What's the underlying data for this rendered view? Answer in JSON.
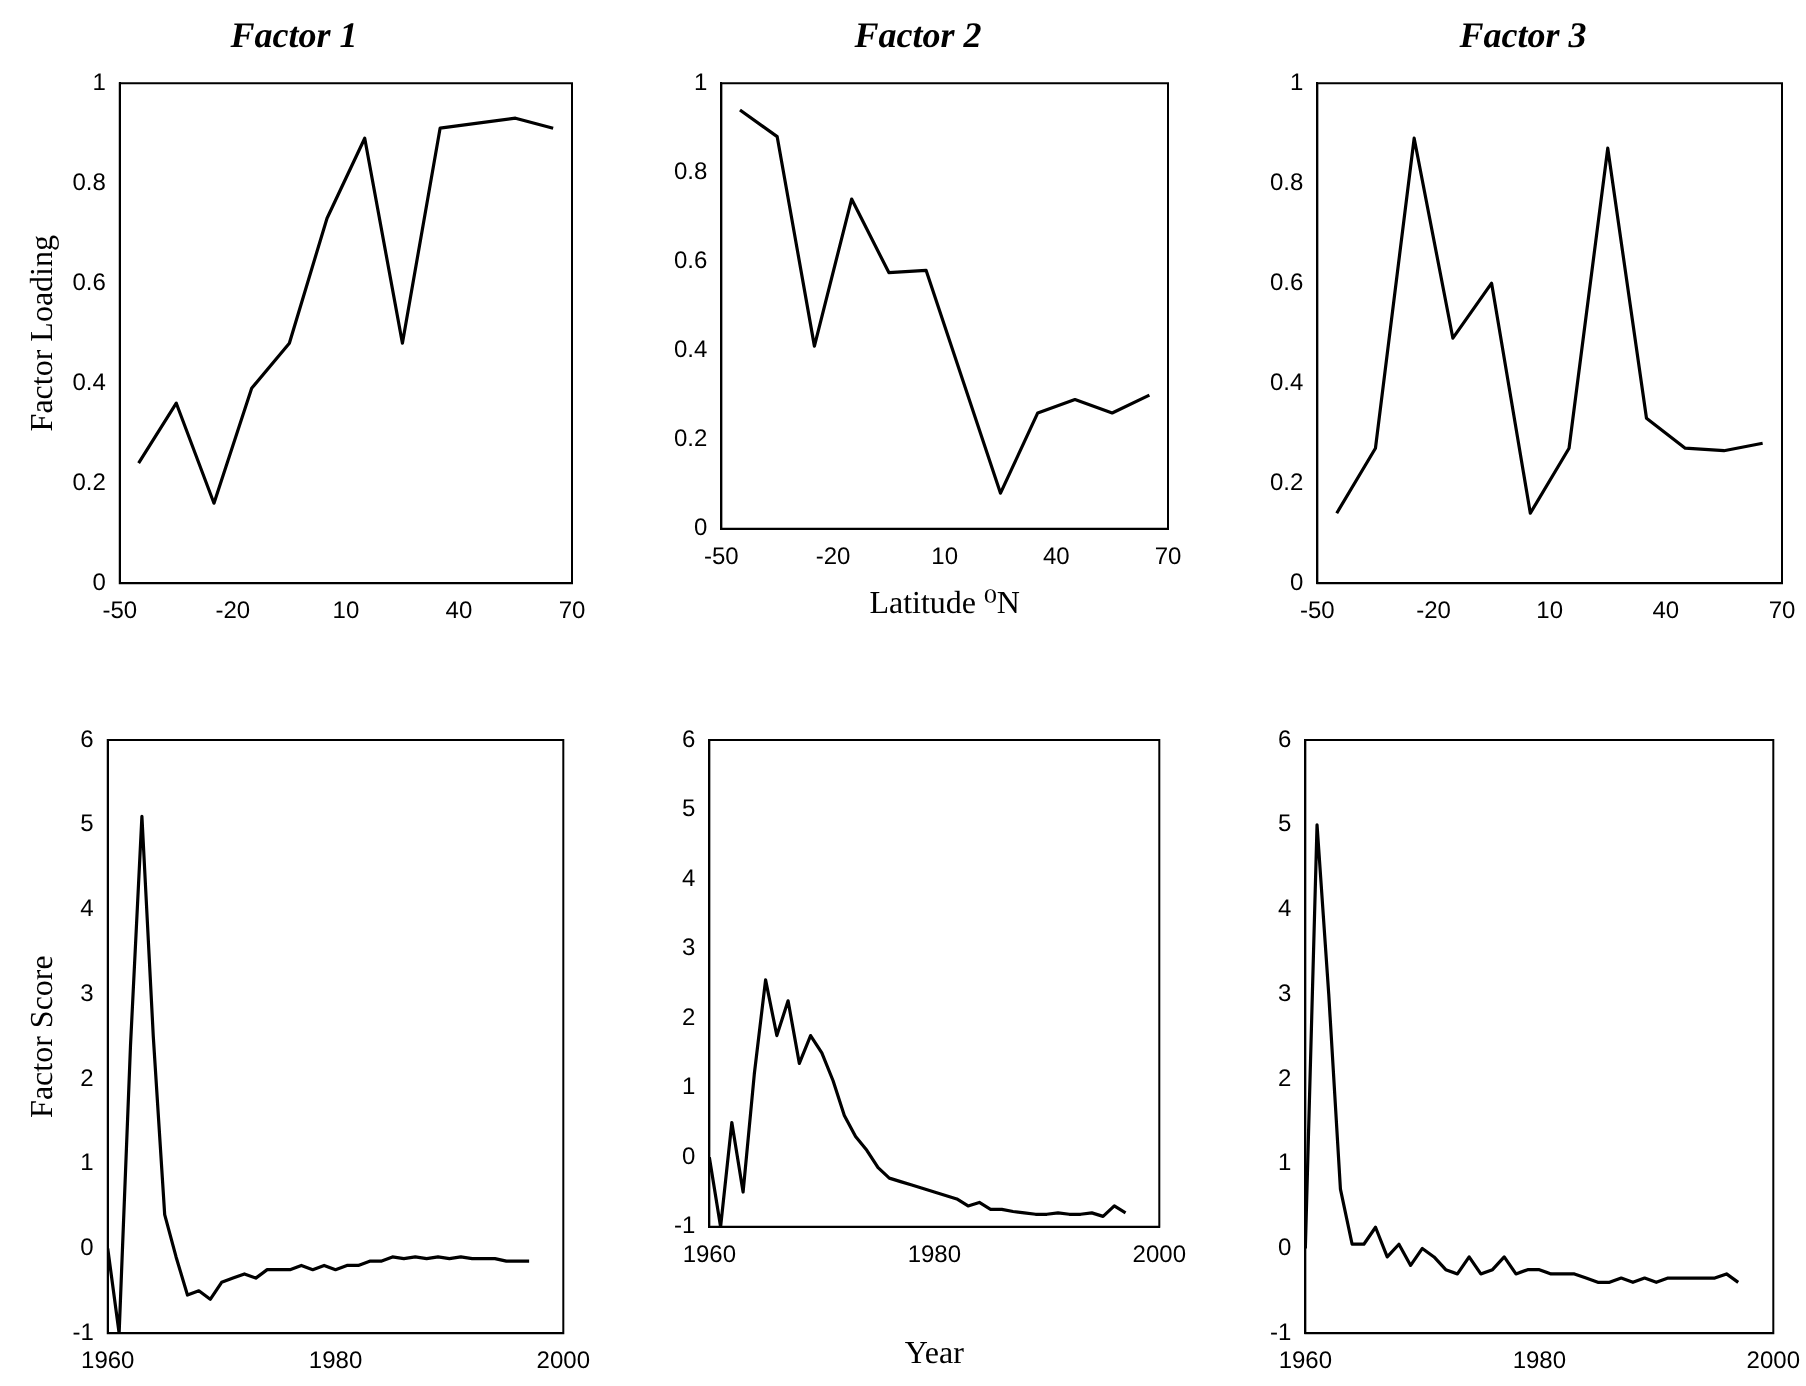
{
  "chart_data": [
    {
      "type": "line",
      "title": "Factor 1",
      "ylabel": "Factor Loading",
      "x": [
        -45,
        -35,
        -25,
        -15,
        -5,
        5,
        15,
        25,
        35,
        45,
        55,
        65
      ],
      "series": [
        {
          "color": "#000000",
          "values": [
            0.24,
            0.36,
            0.16,
            0.39,
            0.48,
            0.73,
            0.89,
            0.48,
            0.91,
            0.92,
            0.93,
            0.91
          ]
        }
      ],
      "xlim": [
        -50,
        70
      ],
      "xticks": [
        -50,
        -20,
        10,
        40,
        70
      ],
      "ylim": [
        0,
        1
      ],
      "yticks": [
        0,
        0.2,
        0.4,
        0.6,
        0.8,
        1
      ]
    },
    {
      "type": "line",
      "title": "Factor 2",
      "xlabel": "Latitude ⁰N",
      "x": [
        -45,
        -35,
        -25,
        -15,
        -5,
        5,
        15,
        25,
        35,
        45,
        55,
        65
      ],
      "series": [
        {
          "color": "#000000",
          "values": [
            0.94,
            0.88,
            0.41,
            0.74,
            0.575,
            0.58,
            0.33,
            0.08,
            0.26,
            0.29,
            0.26,
            0.3
          ]
        }
      ],
      "xlim": [
        -50,
        70
      ],
      "xticks": [
        -50,
        -20,
        10,
        40,
        70
      ],
      "ylim": [
        0,
        1
      ],
      "yticks": [
        0,
        0.2,
        0.4,
        0.6,
        0.8,
        1
      ]
    },
    {
      "type": "line",
      "title": "Factor 3",
      "x": [
        -45,
        -35,
        -25,
        -15,
        -5,
        5,
        15,
        25,
        35,
        45,
        55,
        65
      ],
      "series": [
        {
          "color": "#000000",
          "values": [
            0.14,
            0.27,
            0.89,
            0.49,
            0.6,
            0.14,
            0.27,
            0.87,
            0.33,
            0.27,
            0.265,
            0.28
          ]
        }
      ],
      "xlim": [
        -50,
        70
      ],
      "xticks": [
        -50,
        -20,
        10,
        40,
        70
      ],
      "ylim": [
        0,
        1
      ],
      "yticks": [
        0,
        0.2,
        0.4,
        0.6,
        0.8,
        1
      ]
    },
    {
      "type": "line",
      "ylabel": "Factor Score",
      "x": [
        1960,
        1961,
        1962,
        1963,
        1964,
        1965,
        1966,
        1967,
        1968,
        1969,
        1970,
        1971,
        1972,
        1973,
        1974,
        1975,
        1976,
        1977,
        1978,
        1979,
        1980,
        1981,
        1982,
        1983,
        1984,
        1985,
        1986,
        1987,
        1988,
        1989,
        1990,
        1991,
        1992,
        1993,
        1994,
        1995,
        1996,
        1997
      ],
      "series": [
        {
          "color": "#000000",
          "values": [
            0,
            -1,
            2.4,
            5.1,
            2.5,
            0.4,
            -0.1,
            -0.55,
            -0.5,
            -0.6,
            -0.4,
            -0.35,
            -0.3,
            -0.35,
            -0.25,
            -0.25,
            -0.25,
            -0.2,
            -0.25,
            -0.2,
            -0.25,
            -0.2,
            -0.2,
            -0.15,
            -0.15,
            -0.1,
            -0.12,
            -0.1,
            -0.12,
            -0.1,
            -0.12,
            -0.1,
            -0.12,
            -0.12,
            -0.12,
            -0.15,
            -0.15,
            -0.15
          ]
        }
      ],
      "xlim": [
        1960,
        2000
      ],
      "xticks": [
        1960,
        1980,
        2000
      ],
      "ylim": [
        -1,
        6
      ],
      "yticks": [
        -1,
        0,
        1,
        2,
        3,
        4,
        5,
        6
      ]
    },
    {
      "type": "line",
      "xlabel": "Year",
      "x": [
        1960,
        1961,
        1962,
        1963,
        1964,
        1965,
        1966,
        1967,
        1968,
        1969,
        1970,
        1971,
        1972,
        1973,
        1974,
        1975,
        1976,
        1977,
        1978,
        1979,
        1980,
        1981,
        1982,
        1983,
        1984,
        1985,
        1986,
        1987,
        1988,
        1989,
        1990,
        1991,
        1992,
        1993,
        1994,
        1995,
        1996,
        1997
      ],
      "series": [
        {
          "color": "#000000",
          "values": [
            0,
            -1,
            0.5,
            -0.5,
            1.2,
            2.55,
            1.75,
            2.25,
            1.35,
            1.75,
            1.5,
            1.1,
            0.6,
            0.3,
            0.1,
            -0.15,
            -0.3,
            -0.35,
            -0.4,
            -0.45,
            -0.5,
            -0.55,
            -0.6,
            -0.7,
            -0.65,
            -0.75,
            -0.75,
            -0.78,
            -0.8,
            -0.82,
            -0.82,
            -0.8,
            -0.82,
            -0.82,
            -0.8,
            -0.85,
            -0.7,
            -0.8
          ]
        }
      ],
      "xlim": [
        1960,
        2000
      ],
      "xticks": [
        1960,
        1980,
        2000
      ],
      "ylim": [
        -1,
        6
      ],
      "yticks": [
        -1,
        0,
        1,
        2,
        3,
        4,
        5,
        6
      ]
    },
    {
      "type": "line",
      "x": [
        1960,
        1961,
        1962,
        1963,
        1964,
        1965,
        1966,
        1967,
        1968,
        1969,
        1970,
        1971,
        1972,
        1973,
        1974,
        1975,
        1976,
        1977,
        1978,
        1979,
        1980,
        1981,
        1982,
        1983,
        1984,
        1985,
        1986,
        1987,
        1988,
        1989,
        1990,
        1991,
        1992,
        1993,
        1994,
        1995,
        1996,
        1997
      ],
      "series": [
        {
          "color": "#000000",
          "values": [
            0,
            5,
            3,
            0.7,
            0.05,
            0.05,
            0.25,
            -0.1,
            0.05,
            -0.2,
            0,
            -0.1,
            -0.25,
            -0.3,
            -0.1,
            -0.3,
            -0.25,
            -0.1,
            -0.3,
            -0.25,
            -0.25,
            -0.3,
            -0.3,
            -0.3,
            -0.35,
            -0.4,
            -0.4,
            -0.35,
            -0.4,
            -0.35,
            -0.4,
            -0.35,
            -0.35,
            -0.35,
            -0.35,
            -0.35,
            -0.3,
            -0.4
          ]
        }
      ],
      "xlim": [
        1960,
        2000
      ],
      "xticks": [
        1960,
        1980,
        2000
      ],
      "ylim": [
        -1,
        6
      ],
      "yticks": [
        -1,
        0,
        1,
        2,
        3,
        4,
        5,
        6
      ]
    }
  ]
}
